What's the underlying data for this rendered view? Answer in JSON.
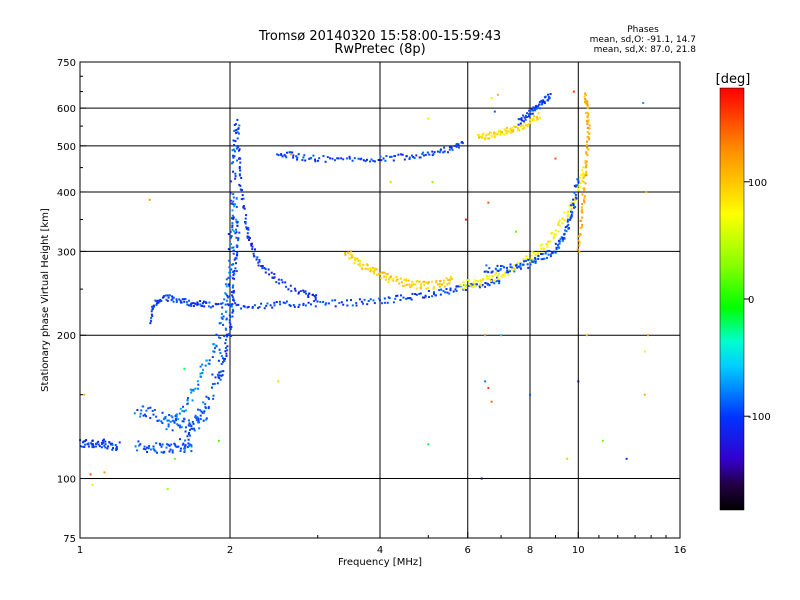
{
  "chart_data": {
    "type": "scatter",
    "title": "Tromsø 20140320 15:58:00-15:59:43",
    "subtitle": "RwPretec (8p)",
    "stats": {
      "heading": "Phases",
      "line1": "mean, sd,O: -91.1, 14.7",
      "line2": "mean, sd,X:  87.0, 21.8"
    },
    "xlabel": "Frequency [MHz]",
    "ylabel": "Stationary phase Virtual Height [km]",
    "x_scale": "log",
    "y_scale": "log",
    "xlim": [
      1,
      16
    ],
    "ylim": [
      75,
      750
    ],
    "x_ticks": [
      1,
      2,
      4,
      6,
      8,
      10,
      16
    ],
    "x_tick_labels": [
      "1",
      "2",
      "4",
      "6",
      "8",
      "10",
      "16"
    ],
    "y_ticks": [
      75,
      100,
      200,
      300,
      400,
      500,
      600,
      750
    ],
    "y_tick_labels": [
      "75",
      "100",
      "200",
      "300",
      "400",
      "500",
      "600",
      "750"
    ],
    "grid": true,
    "colorbar": {
      "label": "[deg]",
      "range": [
        -180,
        180
      ],
      "ticks": [
        100,
        0,
        -100
      ],
      "tick_labels": [
        "100",
        "0",
        "-100"
      ]
    },
    "traces": [
      {
        "phase": -100,
        "spread": 0.05,
        "x": [
          1.0,
          1.05,
          1.1,
          1.15,
          1.2
        ],
        "y": [
          118,
          119,
          118,
          117,
          118
        ]
      },
      {
        "phase": -95,
        "spread": 0.05,
        "x": [
          1.3,
          1.4,
          1.5,
          1.6,
          1.68
        ],
        "y": [
          117,
          116,
          116,
          116,
          117
        ]
      },
      {
        "phase": -90,
        "spread": 0.06,
        "x": [
          1.3,
          1.4,
          1.5,
          1.6,
          1.7,
          1.8
        ],
        "y": [
          140,
          137,
          133,
          130,
          130,
          138
        ]
      },
      {
        "phase": -95,
        "spread": 0.07,
        "x": [
          1.6,
          1.7,
          1.8,
          1.9,
          2.0,
          2.02,
          2.04,
          2.06,
          2.08
        ],
        "y": [
          118,
          130,
          145,
          170,
          250,
          350,
          450,
          520,
          560
        ]
      },
      {
        "phase": -80,
        "spread": 0.06,
        "x": [
          1.5,
          1.6,
          1.7,
          1.8,
          1.9,
          1.98,
          2.03,
          2.06
        ],
        "y": [
          128,
          138,
          155,
          175,
          200,
          250,
          320,
          400
        ]
      },
      {
        "phase": -100,
        "spread": 0.04,
        "x": [
          1.9,
          1.95,
          2.0,
          2.02,
          2.04,
          2.06,
          2.08
        ],
        "y": [
          160,
          180,
          205,
          230,
          260,
          300,
          350
        ]
      },
      {
        "phase": -105,
        "spread": 0.03,
        "x": [
          2.08,
          2.1,
          2.15,
          2.2,
          2.3,
          2.5,
          2.8,
          3.0
        ],
        "y": [
          500,
          420,
          350,
          310,
          280,
          260,
          245,
          240
        ]
      },
      {
        "phase": -100,
        "spread": 0.03,
        "x": [
          1.38,
          1.42,
          1.5,
          1.6,
          1.7,
          1.8,
          2.0,
          2.3,
          2.6,
          3.0,
          3.5,
          4.0,
          4.5,
          5.0,
          5.5,
          6.0,
          6.5,
          7.0
        ],
        "y": [
          215,
          235,
          240,
          236,
          233,
          232,
          231,
          231,
          232,
          233,
          234,
          236,
          240,
          244,
          248,
          252,
          256,
          262
        ]
      },
      {
        "phase": 95,
        "spread": 0.04,
        "x": [
          3.4,
          3.6,
          3.8,
          4.0,
          4.2,
          4.5,
          4.8,
          5.0,
          5.3,
          5.6
        ],
        "y": [
          295,
          285,
          275,
          268,
          262,
          258,
          255,
          254,
          256,
          262
        ]
      },
      {
        "phase": 75,
        "spread": 0.04,
        "x": [
          5.8,
          6.2,
          6.6,
          7.0,
          7.5,
          8.0,
          8.5,
          9.0,
          9.5,
          10.0,
          10.3
        ],
        "y": [
          255,
          258,
          262,
          268,
          278,
          290,
          305,
          330,
          360,
          400,
          450
        ]
      },
      {
        "phase": 110,
        "spread": 0.03,
        "x": [
          10.0,
          10.2,
          10.3,
          10.4,
          10.5,
          10.4,
          10.3
        ],
        "y": [
          300,
          360,
          420,
          480,
          540,
          600,
          640
        ]
      },
      {
        "phase": -95,
        "spread": 0.04,
        "x": [
          6.5,
          7.0,
          7.5,
          8.0,
          8.5,
          9.0,
          9.3,
          9.6,
          9.8,
          10.0
        ],
        "y": [
          275,
          275,
          278,
          283,
          292,
          305,
          320,
          345,
          380,
          430
        ]
      },
      {
        "phase": -100,
        "spread": 0.03,
        "x": [
          2.5,
          2.7,
          3.0,
          3.5,
          4.0,
          4.5,
          5.0,
          5.5,
          5.9
        ],
        "y": [
          485,
          475,
          470,
          468,
          470,
          475,
          482,
          492,
          505
        ]
      },
      {
        "phase": 90,
        "spread": 0.03,
        "x": [
          6.3,
          6.6,
          6.9,
          7.2,
          7.6,
          8.0,
          8.4
        ],
        "y": [
          520,
          525,
          530,
          538,
          545,
          560,
          580
        ]
      },
      {
        "phase": -100,
        "spread": 0.03,
        "x": [
          7.6,
          7.9,
          8.2,
          8.5,
          8.8
        ],
        "y": [
          560,
          580,
          600,
          620,
          640
        ]
      }
    ],
    "scatter_points": [
      {
        "x": 1.05,
        "y": 102,
        "phase": 150
      },
      {
        "x": 1.12,
        "y": 103,
        "phase": 120
      },
      {
        "x": 1.06,
        "y": 97,
        "phase": 60
      },
      {
        "x": 1.02,
        "y": 150,
        "phase": 110
      },
      {
        "x": 1.38,
        "y": 385,
        "phase": 120
      },
      {
        "x": 1.5,
        "y": 95,
        "phase": 40
      },
      {
        "x": 1.55,
        "y": 110,
        "phase": 20
      },
      {
        "x": 1.62,
        "y": 170,
        "phase": -20
      },
      {
        "x": 1.9,
        "y": 120,
        "phase": 10
      },
      {
        "x": 2.5,
        "y": 160,
        "phase": 90
      },
      {
        "x": 2.65,
        "y": 480,
        "phase": 110
      },
      {
        "x": 3.5,
        "y": 300,
        "phase": 120
      },
      {
        "x": 4.2,
        "y": 420,
        "phase": 40
      },
      {
        "x": 5.0,
        "y": 570,
        "phase": 60
      },
      {
        "x": 5.0,
        "y": 118,
        "phase": -20
      },
      {
        "x": 5.1,
        "y": 420,
        "phase": 30
      },
      {
        "x": 5.95,
        "y": 350,
        "phase": 170
      },
      {
        "x": 6.4,
        "y": 100,
        "phase": -150
      },
      {
        "x": 6.5,
        "y": 200,
        "phase": 130
      },
      {
        "x": 6.5,
        "y": 160,
        "phase": -80
      },
      {
        "x": 6.6,
        "y": 155,
        "phase": 160
      },
      {
        "x": 6.7,
        "y": 145,
        "phase": 140
      },
      {
        "x": 6.7,
        "y": 630,
        "phase": 60
      },
      {
        "x": 6.8,
        "y": 590,
        "phase": -90
      },
      {
        "x": 6.6,
        "y": 380,
        "phase": 150
      },
      {
        "x": 6.9,
        "y": 640,
        "phase": 110
      },
      {
        "x": 7.0,
        "y": 200,
        "phase": -60
      },
      {
        "x": 7.5,
        "y": 330,
        "phase": 20
      },
      {
        "x": 8.0,
        "y": 150,
        "phase": -90
      },
      {
        "x": 9.0,
        "y": 470,
        "phase": 150
      },
      {
        "x": 9.5,
        "y": 110,
        "phase": 100
      },
      {
        "x": 9.8,
        "y": 650,
        "phase": 160
      },
      {
        "x": 10.0,
        "y": 160,
        "phase": -150
      },
      {
        "x": 10.4,
        "y": 200,
        "phase": 110
      },
      {
        "x": 11.2,
        "y": 120,
        "phase": 20
      },
      {
        "x": 12.5,
        "y": 110,
        "phase": -100
      },
      {
        "x": 13.7,
        "y": 400,
        "phase": 110
      },
      {
        "x": 13.8,
        "y": 200,
        "phase": 130
      },
      {
        "x": 13.6,
        "y": 150,
        "phase": 110
      },
      {
        "x": 13.5,
        "y": 615,
        "phase": -70
      },
      {
        "x": 13.6,
        "y": 185,
        "phase": 60
      }
    ]
  }
}
